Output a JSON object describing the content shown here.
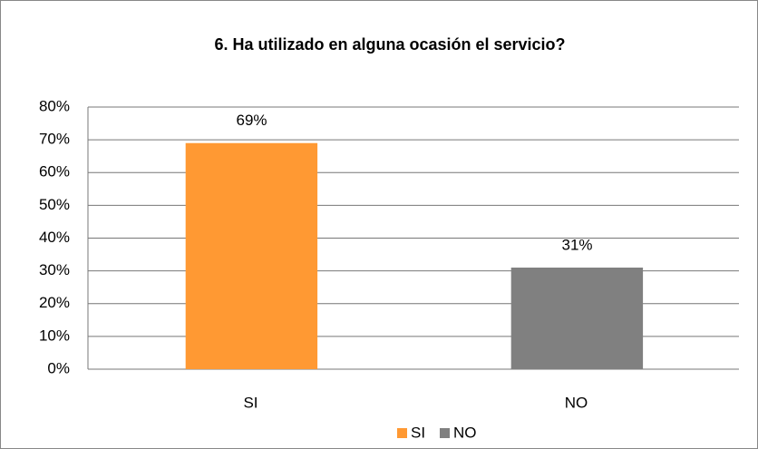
{
  "chart_data": {
    "type": "bar",
    "title": "6. Ha utilizado en alguna ocasión el servicio?",
    "categories": [
      "SI",
      "NO"
    ],
    "values": [
      69,
      31
    ],
    "value_labels": [
      "69%",
      "31%"
    ],
    "colors": [
      "#ff9933",
      "#808080"
    ],
    "ylim": [
      0,
      80
    ],
    "yticks": [
      {
        "value": 0,
        "label": "0%"
      },
      {
        "value": 10,
        "label": "10%"
      },
      {
        "value": 20,
        "label": "20%"
      },
      {
        "value": 30,
        "label": "30%"
      },
      {
        "value": 40,
        "label": "40%"
      },
      {
        "value": 50,
        "label": "50%"
      },
      {
        "value": 60,
        "label": "60%"
      },
      {
        "value": 70,
        "label": "70%"
      },
      {
        "value": 80,
        "label": "80%"
      }
    ],
    "grid": true,
    "legend": "bottom"
  }
}
